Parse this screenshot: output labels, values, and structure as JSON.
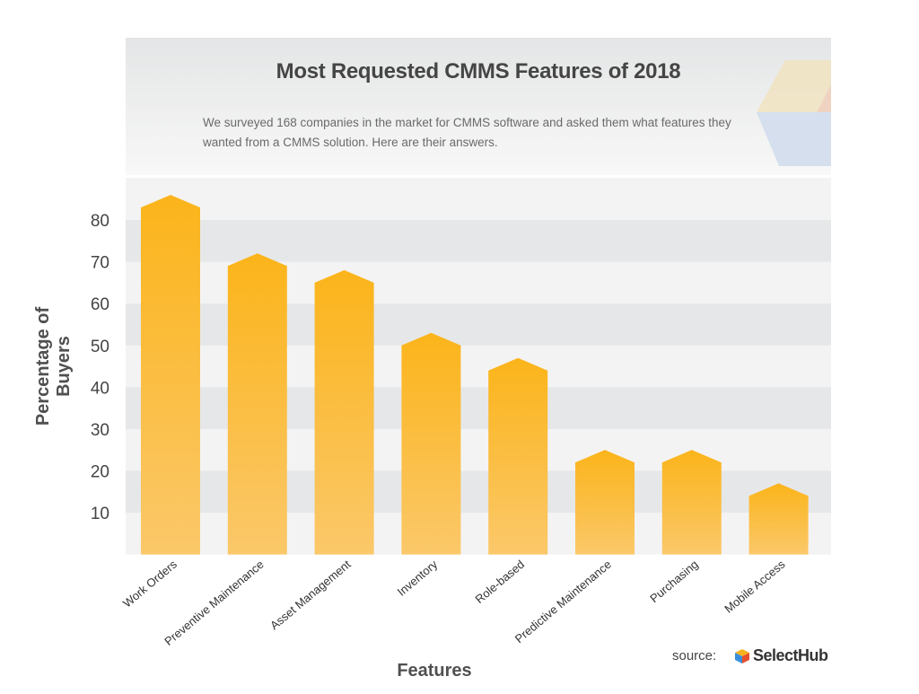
{
  "chart_data": {
    "type": "bar",
    "title": "Most Requested CMMS Features of 2018",
    "subtitle": "We surveyed 168 companies in the market for CMMS software and asked them what features they wanted from a CMMS solution. Here are their answers.",
    "xlabel": "Features",
    "ylabel": "Percentage of Buyers",
    "categories": [
      "Work Orders",
      "Preventive Maintenance",
      "Asset Management",
      "Inventory",
      "Role-based",
      "Predictive Maintenance",
      "Purchasing",
      "Mobile Access"
    ],
    "values": [
      83,
      69,
      65,
      50,
      44,
      22,
      22,
      14
    ],
    "yticks": [
      10,
      20,
      30,
      40,
      50,
      60,
      70,
      80
    ],
    "ylim": [
      0,
      90
    ],
    "grid": "alternating horizontal bands",
    "bar_color_top": "#fbb41a",
    "bar_color_bottom": "#fbc86a"
  },
  "source": {
    "label": "source:",
    "brand": "SelectHub"
  }
}
